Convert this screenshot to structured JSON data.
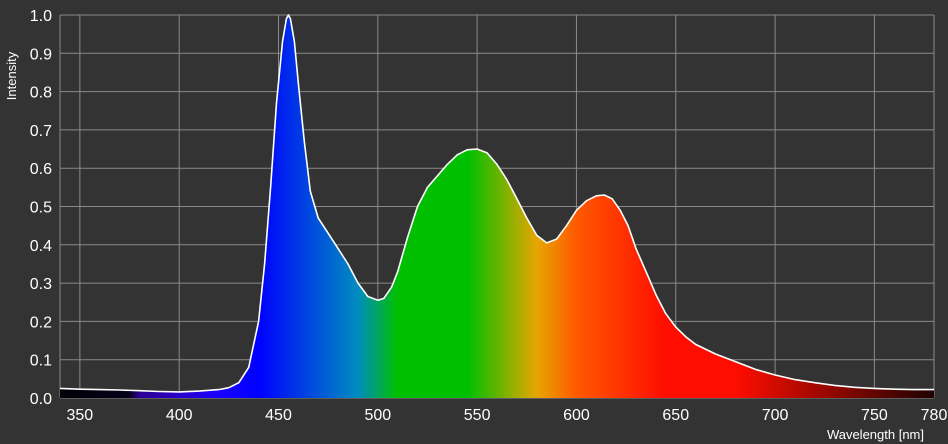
{
  "chart_data": {
    "type": "area",
    "title": "",
    "xlabel": "Wavelength [nm]",
    "ylabel": "Intensity",
    "xlim": [
      340,
      780
    ],
    "ylim": [
      0,
      1.0
    ],
    "grid": true,
    "x_ticks": [
      350,
      400,
      450,
      500,
      550,
      600,
      650,
      700,
      750,
      780
    ],
    "x_tick_labels": [
      "350",
      "400",
      "450",
      "500",
      "550",
      "600",
      "650",
      "700",
      "750",
      "780"
    ],
    "y_ticks": [
      0.0,
      0.1,
      0.2,
      0.3,
      0.4,
      0.5,
      0.6,
      0.7,
      0.8,
      0.9,
      1.0
    ],
    "y_tick_labels": [
      "0.0",
      "0.1",
      "0.2",
      "0.3",
      "0.4",
      "0.5",
      "0.6",
      "0.7",
      "0.8",
      "0.9",
      "1.0"
    ],
    "colors": {
      "background": "#333333",
      "grid": "#8a8a8a",
      "line": "#ffffff",
      "text": "#ffffff"
    },
    "series": [
      {
        "x": [
          340,
          350,
          360,
          370,
          380,
          390,
          400,
          410,
          420,
          425,
          430,
          435,
          440,
          443,
          446,
          449,
          452,
          454,
          455,
          456,
          458,
          460,
          463,
          466,
          470,
          475,
          480,
          485,
          490,
          495,
          500,
          503,
          507,
          510,
          515,
          520,
          525,
          530,
          535,
          540,
          545,
          550,
          555,
          560,
          565,
          570,
          575,
          580,
          585,
          590,
          595,
          600,
          605,
          610,
          614,
          618,
          622,
          626,
          630,
          635,
          640,
          645,
          650,
          655,
          660,
          670,
          680,
          690,
          700,
          710,
          720,
          730,
          740,
          750,
          760,
          770,
          780
        ],
        "y": [
          0.025,
          0.023,
          0.022,
          0.021,
          0.019,
          0.017,
          0.016,
          0.018,
          0.022,
          0.027,
          0.04,
          0.08,
          0.2,
          0.35,
          0.55,
          0.77,
          0.93,
          0.99,
          1.0,
          0.99,
          0.93,
          0.82,
          0.67,
          0.54,
          0.47,
          0.43,
          0.39,
          0.35,
          0.3,
          0.265,
          0.255,
          0.26,
          0.29,
          0.33,
          0.42,
          0.5,
          0.55,
          0.58,
          0.61,
          0.635,
          0.648,
          0.65,
          0.64,
          0.61,
          0.57,
          0.52,
          0.47,
          0.425,
          0.405,
          0.415,
          0.45,
          0.49,
          0.515,
          0.528,
          0.53,
          0.52,
          0.49,
          0.45,
          0.39,
          0.33,
          0.27,
          0.22,
          0.185,
          0.16,
          0.14,
          0.115,
          0.095,
          0.075,
          0.06,
          0.048,
          0.04,
          0.033,
          0.028,
          0.025,
          0.023,
          0.022,
          0.022
        ]
      }
    ]
  }
}
